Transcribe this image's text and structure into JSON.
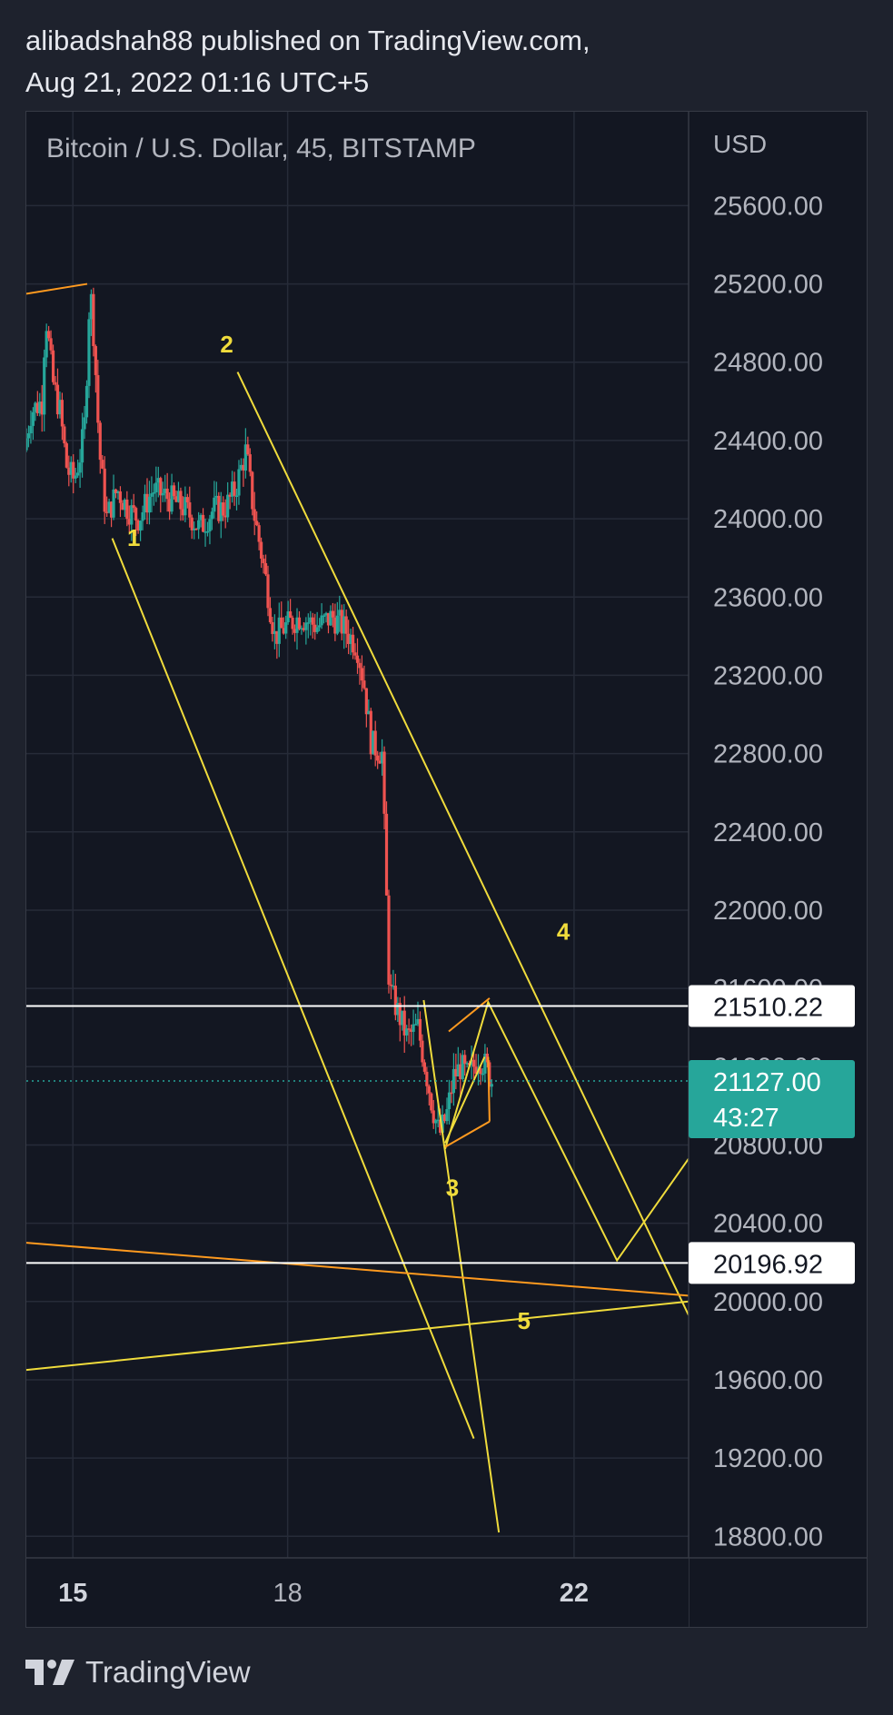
{
  "header": {
    "line1": "alibadshah88 published on TradingView.com,",
    "line2": "Aug 21, 2022 01:16 UTC+5"
  },
  "footer": {
    "brand": "TradingView"
  },
  "colors": {
    "bg": "#131722",
    "grid": "#262b38",
    "up": "#26a69a",
    "down": "#ef5350",
    "yellow": "#f0dc3c",
    "orange": "#ff9a1f",
    "white": "#ffffff",
    "teal": "#26a69a"
  },
  "chart_data": {
    "type": "candlestick",
    "title": "Bitcoin / U.S. Dollar, 45, BITSTAMP",
    "ylabel": "USD",
    "ylim": [
      18690,
      26080
    ],
    "xlim": [
      14.35,
      23.6
    ],
    "y_ticks": [
      18800,
      19200,
      19600,
      20000,
      20400,
      20800,
      21200,
      21600,
      22000,
      22400,
      22800,
      23200,
      23600,
      24000,
      24400,
      24800,
      25200,
      25600
    ],
    "x_ticks": [
      {
        "value": 15,
        "label": "15"
      },
      {
        "value": 18,
        "label": "18"
      },
      {
        "value": 22,
        "label": "22"
      }
    ],
    "price_path": [
      [
        14.35,
        24350
      ],
      [
        14.45,
        24550
      ],
      [
        14.6,
        24600
      ],
      [
        14.65,
        25050
      ],
      [
        14.75,
        24700
      ],
      [
        14.85,
        24550
      ],
      [
        14.95,
        24250
      ],
      [
        15.05,
        24200
      ],
      [
        15.15,
        24350
      ],
      [
        15.2,
        24500
      ],
      [
        15.27,
        25200
      ],
      [
        15.33,
        24900
      ],
      [
        15.4,
        24350
      ],
      [
        15.5,
        24000
      ],
      [
        15.65,
        24150
      ],
      [
        15.8,
        24050
      ],
      [
        15.95,
        24000
      ],
      [
        16.15,
        24150
      ],
      [
        16.4,
        24100
      ],
      [
        16.6,
        24050
      ],
      [
        16.8,
        23950
      ],
      [
        17.0,
        24050
      ],
      [
        17.15,
        24050
      ],
      [
        17.3,
        24150
      ],
      [
        17.45,
        24350
      ],
      [
        17.55,
        24050
      ],
      [
        17.7,
        23750
      ],
      [
        17.85,
        23400
      ],
      [
        18.0,
        23450
      ],
      [
        18.2,
        23500
      ],
      [
        18.45,
        23450
      ],
      [
        18.65,
        23500
      ],
      [
        18.8,
        23450
      ],
      [
        19.0,
        23350
      ],
      [
        19.1,
        23150
      ],
      [
        19.2,
        22850
      ],
      [
        19.35,
        22800
      ],
      [
        19.45,
        21600
      ],
      [
        19.55,
        21500
      ],
      [
        19.7,
        21350
      ],
      [
        19.85,
        21400
      ],
      [
        19.95,
        21200
      ],
      [
        20.05,
        21000
      ],
      [
        20.15,
        20850
      ],
      [
        20.25,
        20950
      ],
      [
        20.35,
        21150
      ],
      [
        20.45,
        21200
      ],
      [
        20.55,
        21150
      ],
      [
        20.7,
        21250
      ],
      [
        20.8,
        21200
      ],
      [
        20.88,
        21127
      ]
    ],
    "series": [
      {
        "name": "",
        "type": "trendline",
        "color": "#f0dc3c",
        "points": [
          [
            15.55,
            23900
          ],
          [
            20.6,
            19300
          ]
        ]
      },
      {
        "name": "",
        "type": "trendline",
        "color": "#f0dc3c",
        "points": [
          [
            17.3,
            24750
          ],
          [
            23.6,
            19930
          ]
        ]
      },
      {
        "name": "",
        "type": "trendline",
        "color": "#f0dc3c",
        "points": [
          [
            14.35,
            19650
          ],
          [
            23.6,
            20000
          ]
        ]
      },
      {
        "name": "",
        "type": "trendline",
        "color": "#f0dc3c",
        "points": [
          [
            19.9,
            21540
          ],
          [
            20.95,
            18820
          ]
        ]
      },
      {
        "name": "",
        "type": "projection",
        "color": "#f0dc3c",
        "points": [
          [
            20.2,
            20780
          ],
          [
            20.8,
            21530
          ],
          [
            22.6,
            20210
          ],
          [
            23.6,
            20730
          ]
        ]
      },
      {
        "name": "",
        "type": "trendline",
        "color": "#ff9a1f",
        "points": [
          [
            14.35,
            25150
          ],
          [
            15.2,
            25200
          ]
        ]
      },
      {
        "name": "",
        "type": "trendline",
        "color": "#ff9a1f",
        "points": [
          [
            14.35,
            20300
          ],
          [
            23.6,
            20030
          ]
        ]
      },
      {
        "name": "",
        "type": "pattern",
        "color": "#f0dc3c",
        "points": [
          [
            20.2,
            20810
          ],
          [
            20.75,
            21250
          ]
        ]
      },
      {
        "name": "",
        "type": "pattern",
        "color": "#ff9a1f",
        "points": [
          [
            20.25,
            21380
          ],
          [
            20.82,
            21550
          ]
        ]
      },
      {
        "name": "",
        "type": "pattern",
        "color": "#ff9a1f",
        "points": [
          [
            20.2,
            20790
          ],
          [
            20.82,
            20920
          ]
        ]
      },
      {
        "name": "",
        "type": "pattern",
        "color": "#ff9a1f",
        "points": [
          [
            20.8,
            21250
          ],
          [
            20.82,
            20920
          ]
        ]
      }
    ],
    "horizontal_levels": [
      {
        "value": 21510.22,
        "label": "21510.22",
        "color": "#ffffff"
      },
      {
        "value": 20196.92,
        "label": "20196.92",
        "color": "#ffffff"
      }
    ],
    "last_price": {
      "value": 21127.0,
      "label": "21127.00",
      "countdown": "43:27",
      "color": "#26a69a"
    },
    "annotations": [
      {
        "text": "1",
        "x": 15.85,
        "y": 23860
      },
      {
        "text": "2",
        "x": 17.15,
        "y": 24850
      },
      {
        "text": "3",
        "x": 20.3,
        "y": 20540
      },
      {
        "text": "4",
        "x": 21.85,
        "y": 21850
      },
      {
        "text": "5",
        "x": 21.3,
        "y": 19860
      }
    ],
    "legend": "none",
    "grid": true
  }
}
